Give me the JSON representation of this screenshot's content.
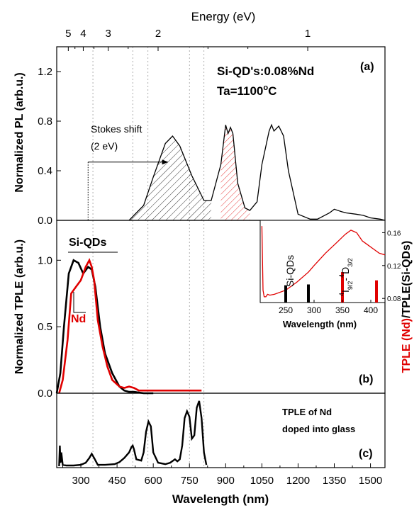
{
  "figure": {
    "top_axis_label": "Energy (eV)",
    "top_ticks": [
      "5",
      "4",
      "3",
      "2",
      "1"
    ],
    "bottom_axis_label": "Wavelength (nm)",
    "bottom_ticks": [
      "300",
      "450",
      "600",
      "750",
      "900",
      "1050",
      "1200",
      "1350",
      "1500"
    ],
    "colors": {
      "black": "#000000",
      "red": "#e00000",
      "dotted_guides": "#9a9a9a"
    }
  },
  "chart_data": [
    {
      "type": "line",
      "panel_label": "(a)",
      "title": "Si-QD's:0.08%Nd",
      "subtitle": "Ta=1100°C",
      "ta_prefix": "Ta=1100",
      "ta_suffix": "C",
      "ta_degree": "o",
      "ylabel": "Normalized PL (arb.u.)",
      "yticks": [
        "0.0",
        "0.4",
        "0.8",
        "1.2"
      ],
      "ylim": [
        0,
        1.4
      ],
      "xlim": [
        200,
        1560
      ],
      "annotation": {
        "line1": "Stokes shift",
        "line2": "(2 eV)",
        "arrow_from_nm": 330,
        "arrow_to_nm": 660
      },
      "series": [
        {
          "color": "#000000",
          "x": [
            500,
            560,
            600,
            650,
            680,
            710,
            760,
            810,
            840,
            880,
            900,
            910,
            920,
            930,
            940,
            950,
            980,
            1000,
            1030,
            1050,
            1080,
            1090,
            1100,
            1120,
            1140,
            1160,
            1200,
            1250,
            1280,
            1300,
            1330,
            1350,
            1380,
            1400,
            1440,
            1470,
            1500,
            1540,
            1560
          ],
          "y": [
            0.0,
            0.12,
            0.35,
            0.62,
            0.68,
            0.6,
            0.36,
            0.16,
            0.16,
            0.45,
            0.77,
            0.7,
            0.75,
            0.7,
            0.5,
            0.3,
            0.1,
            0.08,
            0.15,
            0.45,
            0.72,
            0.77,
            0.72,
            0.76,
            0.68,
            0.4,
            0.05,
            0.01,
            0.01,
            0.03,
            0.06,
            0.09,
            0.07,
            0.06,
            0.05,
            0.04,
            0.02,
            0.01,
            0.0
          ]
        }
      ],
      "shaded_regions": [
        {
          "name": "Si-QD emission band",
          "color": "#000000",
          "x_range_nm": [
            500,
            870
          ]
        },
        {
          "name": "Nd line",
          "color": "#e00000",
          "x_range_nm": [
            870,
            1020
          ]
        }
      ]
    },
    {
      "type": "line",
      "panel_label": "(b)",
      "ylabel": "Normalized TPLE (arb.u.)",
      "right_label_red": "TPLE (Nd)",
      "right_label_black": "/TPLE(Si-QDs)",
      "yticks": [
        "0.0",
        "0.5",
        "1.0"
      ],
      "ylim": [
        0,
        1.3
      ],
      "xlim": [
        200,
        1560
      ],
      "series": [
        {
          "name": "Si-QDs",
          "color": "#000000",
          "x": [
            200,
            215,
            230,
            250,
            270,
            290,
            310,
            330,
            345,
            360,
            380,
            400,
            430,
            460,
            480,
            500,
            520,
            560,
            600
          ],
          "y": [
            0.0,
            0.15,
            0.5,
            0.9,
            1.0,
            0.98,
            0.9,
            0.95,
            0.93,
            0.8,
            0.5,
            0.3,
            0.15,
            0.05,
            0.02,
            0.01,
            0.01,
            0.0,
            0.0
          ]
        },
        {
          "name": "Nd",
          "color": "#e00000",
          "x": [
            210,
            225,
            245,
            260,
            280,
            300,
            320,
            335,
            345,
            355,
            370,
            390,
            410,
            430,
            460,
            480,
            500,
            520,
            540,
            600,
            700,
            800
          ],
          "y": [
            0.0,
            0.1,
            0.4,
            0.75,
            0.8,
            0.85,
            0.95,
            1.0,
            0.95,
            0.85,
            0.55,
            0.35,
            0.2,
            0.1,
            0.05,
            0.04,
            0.05,
            0.04,
            0.02,
            0.02,
            0.02,
            0.02
          ]
        }
      ]
    },
    {
      "type": "line",
      "inset": true,
      "xlabel": "Wavelength (nm)",
      "xticks": [
        "250",
        "300",
        "350",
        "400"
      ],
      "yticks": [
        "0.08",
        "0.12",
        "0.16"
      ],
      "ylim": [
        0.075,
        0.175
      ],
      "xlim": [
        205,
        425
      ],
      "label_siqds": "Si-QDs",
      "label_transition": "4I9/2-4D3/2",
      "transition_parts": {
        "sup1": "4",
        "main1": "I",
        "sub1": "9/2",
        "dash": "-",
        "sup2": "4",
        "main2": "D",
        "sub2": "3/2"
      },
      "series": [
        {
          "color": "#e00000",
          "x": [
            208,
            210,
            212,
            215,
            218,
            222,
            230,
            250,
            270,
            290,
            300,
            320,
            340,
            355,
            365,
            375,
            385,
            395,
            405,
            415,
            425
          ],
          "y": [
            0.168,
            0.09,
            0.082,
            0.082,
            0.085,
            0.084,
            0.085,
            0.09,
            0.1,
            0.112,
            0.12,
            0.135,
            0.148,
            0.158,
            0.163,
            0.16,
            0.15,
            0.145,
            0.14,
            0.135,
            0.133
          ]
        }
      ],
      "markers": [
        {
          "color": "#000000",
          "x": 250,
          "y_top": 0.096
        },
        {
          "color": "#000000",
          "x": 290,
          "y_top": 0.097
        },
        {
          "color": "#e00000",
          "x": 350,
          "y_top": 0.112
        },
        {
          "color": "#e00000",
          "x": 410,
          "y_top": 0.102
        }
      ]
    },
    {
      "type": "line",
      "panel_label": "(c)",
      "label_line1": "TPLE of Nd",
      "label_line2": "doped into glass",
      "ylim": [
        0,
        1
      ],
      "xlim": [
        200,
        1560
      ],
      "series": [
        {
          "color": "#000000",
          "x": [
            210,
            213,
            216,
            219,
            225,
            240,
            270,
            300,
            320,
            335,
            345,
            355,
            370,
            400,
            440,
            460,
            480,
            500,
            510,
            515,
            520,
            530,
            550,
            560,
            570,
            580,
            590,
            600,
            620,
            650,
            670,
            690,
            700,
            710,
            720,
            730,
            740,
            750,
            760,
            770,
            780,
            790,
            800,
            810,
            820
          ],
          "y": [
            0.0,
            0.3,
            0.05,
            0.2,
            0.02,
            0.01,
            0.01,
            0.02,
            0.05,
            0.12,
            0.18,
            0.12,
            0.02,
            0.02,
            0.03,
            0.06,
            0.12,
            0.2,
            0.28,
            0.3,
            0.25,
            0.1,
            0.08,
            0.2,
            0.5,
            0.65,
            0.58,
            0.2,
            0.05,
            0.03,
            0.05,
            0.1,
            0.07,
            0.1,
            0.3,
            0.7,
            0.8,
            0.72,
            0.4,
            0.45,
            0.85,
            0.95,
            0.7,
            0.2,
            0.02
          ]
        }
      ]
    }
  ]
}
